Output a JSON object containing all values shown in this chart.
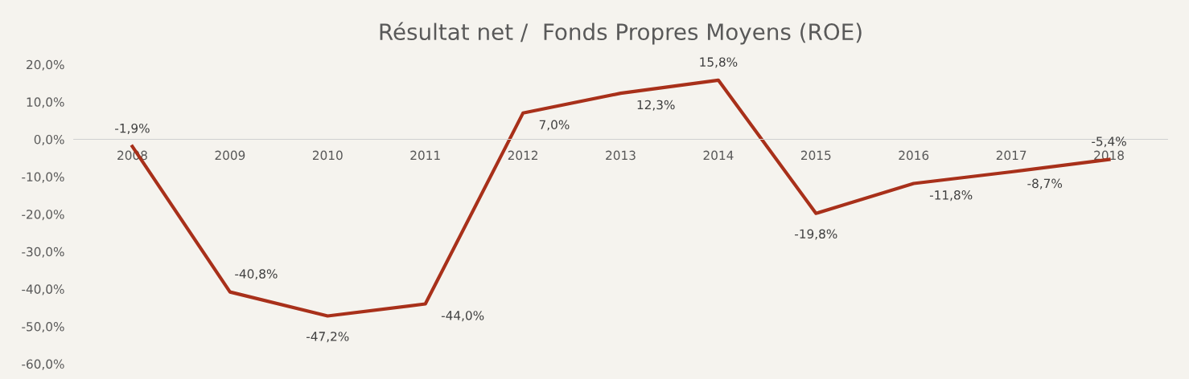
{
  "chart_data": {
    "type": "line",
    "title": "Résultat net /  Fonds Propres Moyens (ROE)",
    "categories": [
      "2008",
      "2009",
      "2010",
      "2011",
      "2012",
      "2013",
      "2014",
      "2015",
      "2016",
      "2017",
      "2018"
    ],
    "series": [
      {
        "color": "#a8301a",
        "values": [
          -1.9,
          -40.8,
          -47.2,
          -44.0,
          7.0,
          12.3,
          15.8,
          -19.8,
          -11.8,
          -8.7,
          -5.4
        ],
        "value_labels": [
          "-1,9%",
          "-40,8%",
          "-47,2%",
          "-44,0%",
          "7,0%",
          "12,3%",
          "15,8%",
          "-19,8%",
          "-11,8%",
          "-8,7%",
          "-5,4%"
        ]
      }
    ],
    "ylim": [
      -60,
      20
    ],
    "yticks": [
      {
        "value": 20,
        "label": "20,0%"
      },
      {
        "value": 10,
        "label": "10,0%"
      },
      {
        "value": 0,
        "label": "0,0%"
      },
      {
        "value": -10,
        "label": "-10,0%"
      },
      {
        "value": -20,
        "label": "-20,0%"
      },
      {
        "value": -30,
        "label": "-30,0%"
      },
      {
        "value": -40,
        "label": "-40,0%"
      },
      {
        "value": -50,
        "label": "-50,0%"
      },
      {
        "value": -60,
        "label": "-60,0%"
      }
    ],
    "grid": false,
    "legend": false,
    "marker": "none",
    "line_style": "solid"
  }
}
